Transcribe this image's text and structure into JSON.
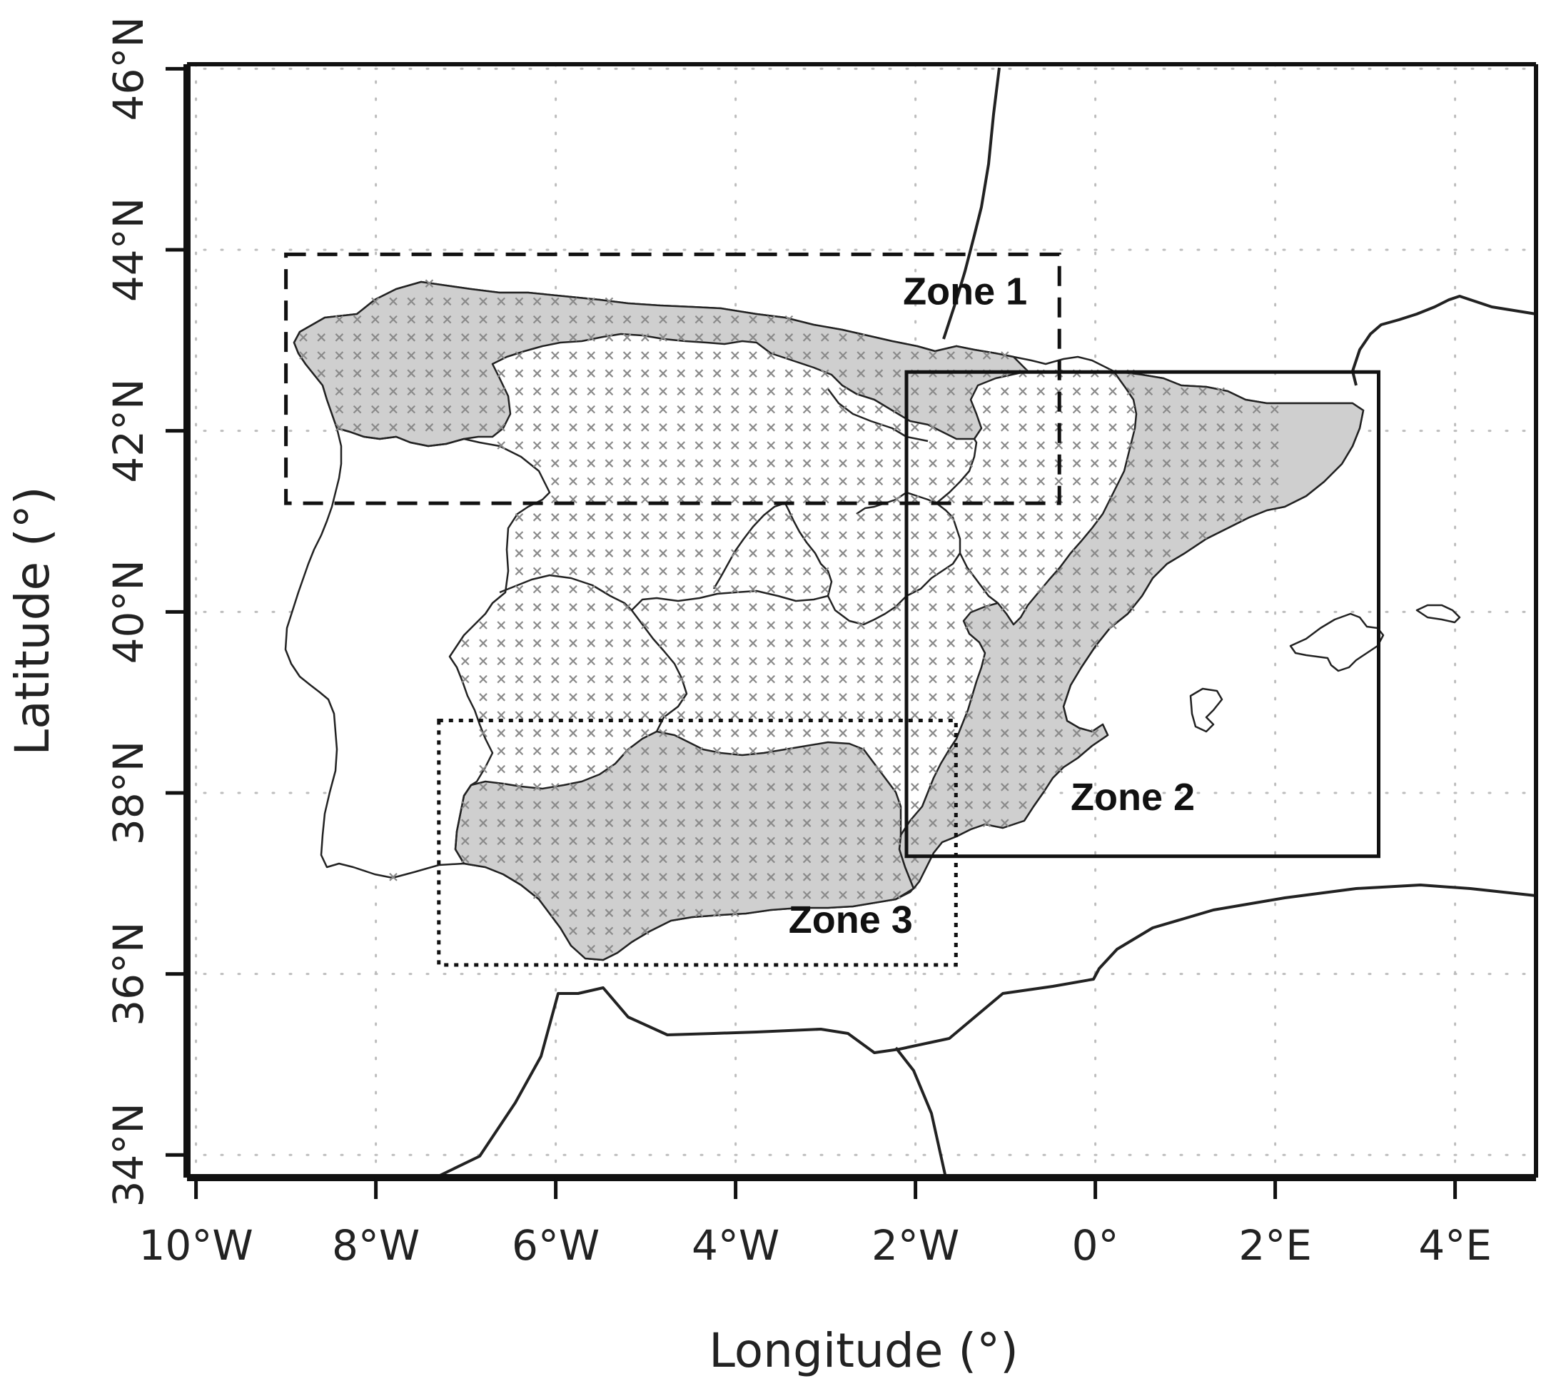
{
  "map": {
    "x_axis_title": "Longitude (°)",
    "y_axis_title": "Latitude (°)",
    "x_ticks": [
      {
        "value": -10,
        "label": "10°W"
      },
      {
        "value": -8,
        "label": "8°W"
      },
      {
        "value": -6,
        "label": "6°W"
      },
      {
        "value": -4,
        "label": "4°W"
      },
      {
        "value": -2,
        "label": "2°W"
      },
      {
        "value": 0,
        "label": "0°"
      },
      {
        "value": 2,
        "label": "2°E"
      },
      {
        "value": 4,
        "label": "4°E"
      }
    ],
    "y_ticks": [
      {
        "value": 34,
        "label": "34°N"
      },
      {
        "value": 36,
        "label": "36°N"
      },
      {
        "value": 38,
        "label": "38°N"
      },
      {
        "value": 40,
        "label": "40°N"
      },
      {
        "value": 42,
        "label": "42°N"
      },
      {
        "value": 44,
        "label": "44°N"
      },
      {
        "value": 46,
        "label": "46°N"
      }
    ],
    "lon_range": [
      -10.1,
      4.9
    ],
    "lat_range": [
      33.75,
      46.05
    ],
    "grid": true,
    "zones": [
      {
        "label": "Zone 1",
        "style": "dashed",
        "lon": [
          -9.0,
          -0.4
        ],
        "lat": [
          41.2,
          43.95
        ]
      },
      {
        "label": "Zone 2",
        "style": "solid",
        "lon": [
          -2.1,
          3.15
        ],
        "lat": [
          37.3,
          42.65
        ]
      },
      {
        "label": "Zone 3",
        "style": "dotted",
        "lon": [
          -7.3,
          -1.55
        ],
        "lat": [
          36.1,
          38.8
        ]
      }
    ],
    "colors": {
      "shaded_regions": "#cfcfcf",
      "grid_points": "#8a8a8a",
      "lines": "#222222"
    }
  }
}
